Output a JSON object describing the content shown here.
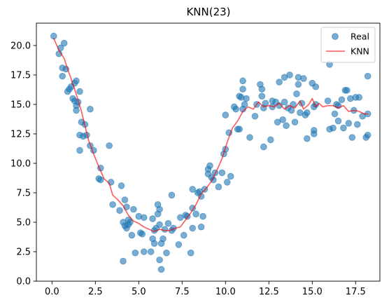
{
  "chart_data": {
    "type": "scatter",
    "title": "KNN(23)",
    "xlabel": "",
    "ylabel": "",
    "xlim": [
      -0.9,
      18.9
    ],
    "ylim": [
      0,
      21.9
    ],
    "xticks": [
      0.0,
      2.5,
      5.0,
      7.5,
      10.0,
      12.5,
      15.0,
      17.5
    ],
    "xtick_labels": [
      "0.0",
      "2.5",
      "5.0",
      "7.5",
      "10.0",
      "12.5",
      "15.0",
      "17.5"
    ],
    "yticks": [
      0.0,
      2.5,
      5.0,
      7.5,
      10.0,
      12.5,
      15.0,
      17.5,
      20.0
    ],
    "ytick_labels": [
      "0.0",
      "2.5",
      "5.0",
      "7.5",
      "10.0",
      "12.5",
      "15.0",
      "17.5",
      "20.0"
    ],
    "grid": false,
    "legend": {
      "position": "upper-right",
      "entries": [
        {
          "label": "Real",
          "kind": "marker",
          "color": "#1f77b4"
        },
        {
          "label": "KNN",
          "kind": "line",
          "color": "#ff0000"
        }
      ]
    },
    "series": [
      {
        "name": "Real",
        "kind": "scatter",
        "color": "#1f77b4",
        "alpha": 0.6,
        "points": [
          [
            0.1,
            20.8
          ],
          [
            0.4,
            19.3
          ],
          [
            0.5,
            19.8
          ],
          [
            0.6,
            18.1
          ],
          [
            0.6,
            17.4
          ],
          [
            0.7,
            20.2
          ],
          [
            0.8,
            18.0
          ],
          [
            0.9,
            16.1
          ],
          [
            1.0,
            16.3
          ],
          [
            1.1,
            16.5
          ],
          [
            1.2,
            15.5
          ],
          [
            1.3,
            15.3
          ],
          [
            1.3,
            16.8
          ],
          [
            1.4,
            17.0
          ],
          [
            1.4,
            14.9
          ],
          [
            1.4,
            14.5
          ],
          [
            1.5,
            15.2
          ],
          [
            1.6,
            16.1
          ],
          [
            1.6,
            11.1
          ],
          [
            1.6,
            12.4
          ],
          [
            1.7,
            13.5
          ],
          [
            1.8,
            12.3
          ],
          [
            1.9,
            13.3
          ],
          [
            2.0,
            12.4
          ],
          [
            2.2,
            11.5
          ],
          [
            2.2,
            14.6
          ],
          [
            2.4,
            11.1
          ],
          [
            2.7,
            8.7
          ],
          [
            2.8,
            9.6
          ],
          [
            2.8,
            8.6
          ],
          [
            3.3,
            11.5
          ],
          [
            3.4,
            8.4
          ],
          [
            3.5,
            6.5
          ],
          [
            3.9,
            6.0
          ],
          [
            4.0,
            8.1
          ],
          [
            4.1,
            1.7
          ],
          [
            4.1,
            5.0
          ],
          [
            4.2,
            6.9
          ],
          [
            4.2,
            4.7
          ],
          [
            4.3,
            6.3
          ],
          [
            4.3,
            4.5
          ],
          [
            4.4,
            4.8
          ],
          [
            4.4,
            5.2
          ],
          [
            4.5,
            5.0
          ],
          [
            4.6,
            3.9
          ],
          [
            4.7,
            6.1
          ],
          [
            4.8,
            2.4
          ],
          [
            5.0,
            5.5
          ],
          [
            5.1,
            4.1
          ],
          [
            5.2,
            4.0
          ],
          [
            5.3,
            5.4
          ],
          [
            5.3,
            2.5
          ],
          [
            5.7,
            2.5
          ],
          [
            5.8,
            3.6
          ],
          [
            5.8,
            5.3
          ],
          [
            5.9,
            3.2
          ],
          [
            5.9,
            4.3
          ],
          [
            6.0,
            4.5
          ],
          [
            6.1,
            6.5
          ],
          [
            6.1,
            5.7
          ],
          [
            6.2,
            4.8
          ],
          [
            6.2,
            6.1
          ],
          [
            6.2,
            1.8
          ],
          [
            6.3,
            1.0
          ],
          [
            6.3,
            3.2
          ],
          [
            6.4,
            3.6
          ],
          [
            6.5,
            4.4
          ],
          [
            6.6,
            2.4
          ],
          [
            6.7,
            4.9
          ],
          [
            6.9,
            4.3
          ],
          [
            6.9,
            7.3
          ],
          [
            7.0,
            4.5
          ],
          [
            7.3,
            3.1
          ],
          [
            7.4,
            5.4
          ],
          [
            7.6,
            3.9
          ],
          [
            7.7,
            5.6
          ],
          [
            7.8,
            5.5
          ],
          [
            8.0,
            2.4
          ],
          [
            8.1,
            4.5
          ],
          [
            8.1,
            6.2
          ],
          [
            8.1,
            7.8
          ],
          [
            8.3,
            5.7
          ],
          [
            8.4,
            7.5
          ],
          [
            8.5,
            7.6
          ],
          [
            8.6,
            4.6
          ],
          [
            8.6,
            7.2
          ],
          [
            8.7,
            5.5
          ],
          [
            8.8,
            7.8
          ],
          [
            9.0,
            9.1
          ],
          [
            9.0,
            9.5
          ],
          [
            9.1,
            9.8
          ],
          [
            9.2,
            8.8
          ],
          [
            9.3,
            8.6
          ],
          [
            9.4,
            9.2
          ],
          [
            9.6,
            8.0
          ],
          [
            9.8,
            9.2
          ],
          [
            9.9,
            10.8
          ],
          [
            10.0,
            11.2
          ],
          [
            10.0,
            14.1
          ],
          [
            10.1,
            8.4
          ],
          [
            10.2,
            12.6
          ],
          [
            10.3,
            8.9
          ],
          [
            10.5,
            14.8
          ],
          [
            10.6,
            14.6
          ],
          [
            10.7,
            12.9
          ],
          [
            10.8,
            12.9
          ],
          [
            10.8,
            15.7
          ],
          [
            10.9,
            15.6
          ],
          [
            11.0,
            16.3
          ],
          [
            11.0,
            17.0
          ],
          [
            11.0,
            14.6
          ],
          [
            11.1,
            15.0
          ],
          [
            11.2,
            15.5
          ],
          [
            11.4,
            12.2
          ],
          [
            11.7,
            14.0
          ],
          [
            11.8,
            15.0
          ],
          [
            12.0,
            16.7
          ],
          [
            12.1,
            16.3
          ],
          [
            12.1,
            15.7
          ],
          [
            12.2,
            14.7
          ],
          [
            12.2,
            11.4
          ],
          [
            12.3,
            15.1
          ],
          [
            12.6,
            12.0
          ],
          [
            12.7,
            15.3
          ],
          [
            12.7,
            14.8
          ],
          [
            12.9,
            15.2
          ],
          [
            13.0,
            13.5
          ],
          [
            13.1,
            14.9
          ],
          [
            13.1,
            16.9
          ],
          [
            13.3,
            13.7
          ],
          [
            13.4,
            17.3
          ],
          [
            13.4,
            15.2
          ],
          [
            13.5,
            13.2
          ],
          [
            13.6,
            14.7
          ],
          [
            13.7,
            17.5
          ],
          [
            13.8,
            14.5
          ],
          [
            13.9,
            15.0
          ],
          [
            14.0,
            13.5
          ],
          [
            14.1,
            15.9
          ],
          [
            14.2,
            16.7
          ],
          [
            14.2,
            17.3
          ],
          [
            14.3,
            14.3
          ],
          [
            14.4,
            15.1
          ],
          [
            14.5,
            17.2
          ],
          [
            14.6,
            14.1
          ],
          [
            14.7,
            14.3
          ],
          [
            14.7,
            12.1
          ],
          [
            15.0,
            16.8
          ],
          [
            15.1,
            12.8
          ],
          [
            15.1,
            12.5
          ],
          [
            15.1,
            14.8
          ],
          [
            15.2,
            16.5
          ],
          [
            15.2,
            15.0
          ],
          [
            15.9,
            15.3
          ],
          [
            16.0,
            18.4
          ],
          [
            16.0,
            12.9
          ],
          [
            16.2,
            13.0
          ],
          [
            16.3,
            14.2
          ],
          [
            16.4,
            15.0
          ],
          [
            16.5,
            14.9
          ],
          [
            16.5,
            13.6
          ],
          [
            16.7,
            15.4
          ],
          [
            16.8,
            13.0
          ],
          [
            16.9,
            16.2
          ],
          [
            17.0,
            16.2
          ],
          [
            17.1,
            13.4
          ],
          [
            17.2,
            15.5
          ],
          [
            17.3,
            12.2
          ],
          [
            17.4,
            14.5
          ],
          [
            17.5,
            15.6
          ],
          [
            17.6,
            13.3
          ],
          [
            17.7,
            15.6
          ],
          [
            17.9,
            14.0
          ],
          [
            18.1,
            12.2
          ],
          [
            18.2,
            14.2
          ],
          [
            18.2,
            12.4
          ],
          [
            18.2,
            17.4
          ]
        ]
      },
      {
        "name": "KNN",
        "kind": "line",
        "color": "#ff0000",
        "alpha": 0.65,
        "points": [
          [
            0.1,
            20.6
          ],
          [
            0.4,
            19.6
          ],
          [
            0.7,
            18.9
          ],
          [
            0.9,
            18.0
          ],
          [
            1.1,
            17.2
          ],
          [
            1.3,
            16.3
          ],
          [
            1.5,
            15.4
          ],
          [
            1.7,
            14.4
          ],
          [
            1.9,
            13.2
          ],
          [
            2.1,
            12.0
          ],
          [
            2.4,
            10.8
          ],
          [
            2.7,
            9.7
          ],
          [
            3.0,
            8.7
          ],
          [
            3.3,
            8.3
          ],
          [
            3.5,
            7.3
          ],
          [
            3.8,
            6.9
          ],
          [
            4.1,
            6.4
          ],
          [
            4.4,
            5.6
          ],
          [
            4.7,
            5.1
          ],
          [
            5.0,
            4.9
          ],
          [
            5.3,
            4.6
          ],
          [
            5.6,
            4.4
          ],
          [
            5.9,
            4.2
          ],
          [
            6.2,
            4.4
          ],
          [
            6.5,
            4.3
          ],
          [
            6.8,
            4.3
          ],
          [
            7.1,
            4.5
          ],
          [
            7.4,
            4.6
          ],
          [
            7.7,
            5.2
          ],
          [
            8.0,
            5.8
          ],
          [
            8.3,
            6.5
          ],
          [
            8.6,
            7.4
          ],
          [
            8.9,
            7.9
          ],
          [
            9.2,
            8.5
          ],
          [
            9.5,
            9.4
          ],
          [
            9.8,
            10.4
          ],
          [
            10.1,
            11.8
          ],
          [
            10.4,
            13.0
          ],
          [
            10.7,
            13.6
          ],
          [
            11.0,
            14.4
          ],
          [
            11.3,
            14.8
          ],
          [
            11.6,
            14.6
          ],
          [
            11.9,
            15.2
          ],
          [
            12.2,
            14.8
          ],
          [
            12.5,
            14.9
          ],
          [
            12.8,
            14.8
          ],
          [
            13.1,
            15.1
          ],
          [
            13.4,
            14.6
          ],
          [
            13.7,
            14.9
          ],
          [
            14.0,
            14.7
          ],
          [
            14.3,
            15.3
          ],
          [
            14.5,
            14.6
          ],
          [
            14.8,
            15.0
          ],
          [
            15.0,
            15.5
          ],
          [
            15.2,
            14.8
          ],
          [
            15.4,
            15.1
          ],
          [
            15.6,
            14.8
          ],
          [
            15.9,
            14.9
          ],
          [
            16.2,
            14.9
          ],
          [
            16.5,
            14.7
          ],
          [
            16.8,
            14.9
          ],
          [
            17.1,
            14.4
          ],
          [
            17.4,
            14.5
          ],
          [
            17.7,
            14.4
          ],
          [
            18.0,
            14.2
          ],
          [
            18.2,
            14.2
          ]
        ]
      }
    ]
  }
}
